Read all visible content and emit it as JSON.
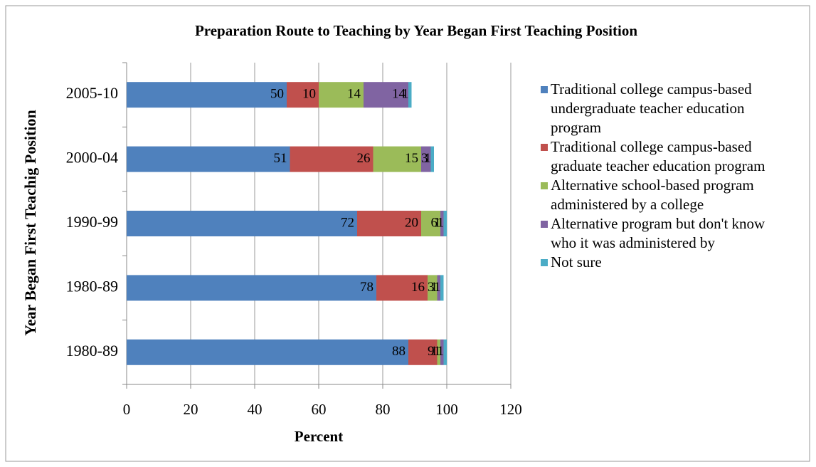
{
  "chart_data": {
    "type": "bar",
    "orientation": "horizontal",
    "stacked": true,
    "title": "Preparation Route to Teaching by Year Began First Teaching Position",
    "x_label": "Percent",
    "y_label": "Year Began First Teachig Position",
    "categories": [
      "2005-10",
      "2000-04",
      "1990-99",
      "1980-89",
      "1980-89"
    ],
    "series": [
      {
        "name": "Traditional college campus-based undergraduate teacher education program",
        "color": "#4f81bd",
        "values": [
          50,
          51,
          72,
          78,
          88
        ]
      },
      {
        "name": "Traditional college campus-based graduate teacher education program",
        "color": "#c0504d",
        "values": [
          10,
          26,
          20,
          16,
          9
        ]
      },
      {
        "name": "Alternative school-based program administered by a college",
        "color": "#9bbb59",
        "values": [
          14,
          15,
          6,
          3,
          1
        ]
      },
      {
        "name": "Alternative program but don't know who it was administered by",
        "color": "#8064a2",
        "values": [
          14,
          3,
          1,
          1,
          1
        ]
      },
      {
        "name": "Not sure",
        "color": "#4bacc6",
        "values": [
          1,
          1,
          1,
          1,
          1
        ]
      }
    ],
    "xlim": [
      0,
      120
    ],
    "xticks": [
      0,
      20,
      40,
      60,
      80,
      100,
      120
    ],
    "grid": true,
    "legend": "right"
  }
}
